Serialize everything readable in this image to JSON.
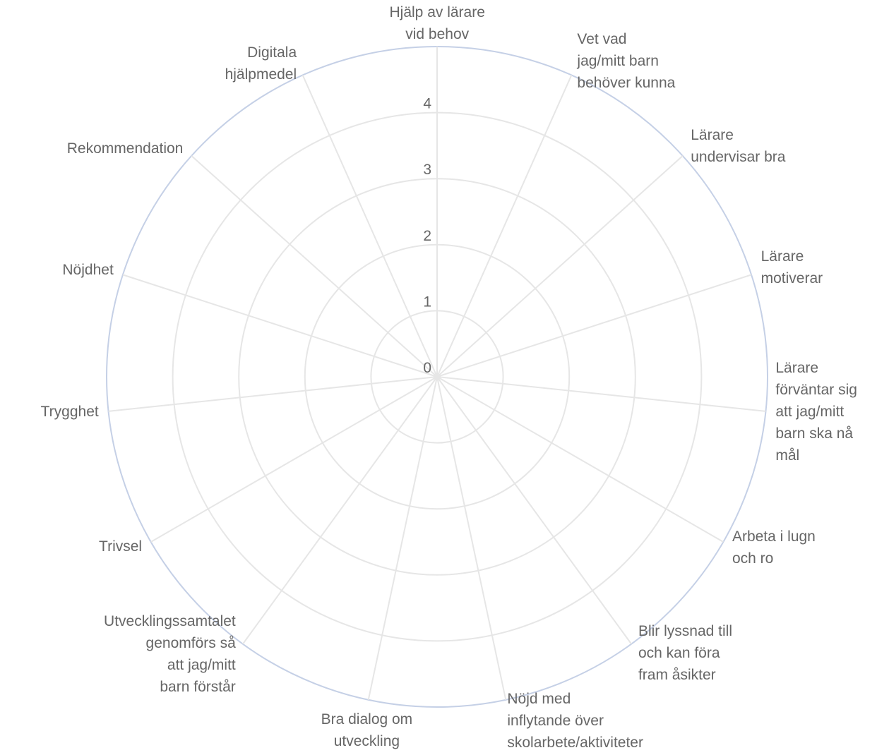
{
  "chart_data": {
    "type": "radar",
    "categories": [
      "Hjälp av lärare\nvid behov",
      "Vet vad\njag/mitt barn\nbehöver kunna",
      "Lärare\nundervisar bra",
      "Lärare\nmotiverar",
      "Lärare\nförväntar sig\natt jag/mitt\nbarn ska nå\nmål",
      "Arbeta i lugn\noch ro",
      "Blir lyssnad till\noch kan föra\nfram åsikter",
      "Nöjd med\ninflytande över\nskolarbete/aktiviteter",
      "Bra dialog om\nutveckling",
      "Utvecklingssamtalet\ngenomförs så\natt jag/mitt\nbarn förstår",
      "Trivsel",
      "Trygghet",
      "Nöjdhet",
      "Rekommendation",
      "Digitala\nhjälpmedel"
    ],
    "r_ticks": [
      "0",
      "1",
      "2",
      "3",
      "4"
    ],
    "r_range": [
      0,
      5
    ],
    "series": [],
    "grid": true,
    "colors": {
      "grid": "#e6e6e6",
      "outer_ring": "#c5d0e6",
      "text": "#666666"
    }
  }
}
